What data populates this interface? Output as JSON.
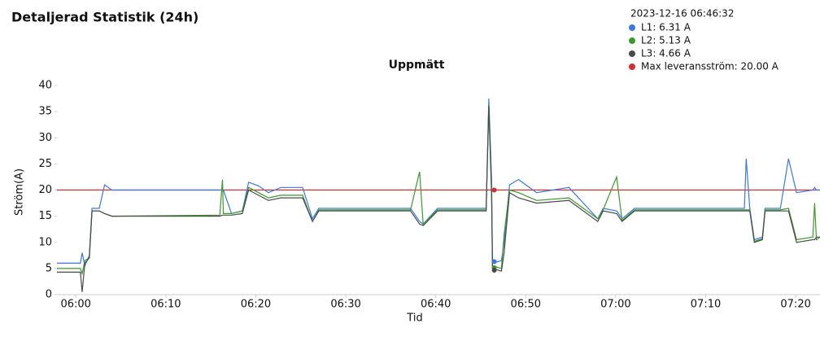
{
  "chart_data": {
    "type": "line",
    "title": "Detaljerad Statistik (24h)",
    "subtitle": "Uppmätt",
    "x_label": "Tid",
    "y_label": "Ström(A)",
    "hover_time": "2023-12-16 06:46:32",
    "x": [
      357.9,
      360.5,
      360.7,
      361.0,
      361.5,
      361.8,
      362.6,
      363.2,
      364.0,
      376.0,
      376.3,
      376.4,
      377.3,
      378.5,
      379.2,
      380.3,
      381.4,
      382.8,
      385.2,
      386.3,
      387.0,
      397.2,
      398.2,
      398.6,
      400.2,
      405.6,
      405.9,
      406.2,
      406.3,
      407.3,
      407.6,
      408.2,
      409.2,
      411.2,
      414.8,
      418.0,
      418.6,
      420.1,
      420.7,
      422.1,
      434.3,
      434.5,
      434.9,
      435.4,
      436.3,
      436.6,
      438.3,
      439.2,
      440.1,
      441.9,
      442.1,
      442.3,
      442.7
    ],
    "series": [
      {
        "name": "L1: 6.31 A",
        "color": "#3b78e7",
        "hover_value": 6.31,
        "values": [
          6.0,
          6.0,
          8.0,
          5.5,
          7.5,
          16.5,
          16.5,
          21.0,
          20.0,
          20.0,
          20.0,
          20.0,
          15.5,
          16.0,
          21.5,
          20.8,
          19.5,
          20.5,
          20.5,
          14.5,
          16.5,
          16.5,
          14.0,
          13.5,
          16.5,
          16.5,
          37.5,
          22.0,
          6.0,
          6.5,
          10.0,
          21.0,
          22.0,
          19.5,
          20.5,
          14.5,
          16.5,
          16.0,
          14.5,
          16.5,
          16.5,
          26.0,
          16.5,
          10.5,
          11.0,
          16.5,
          16.5,
          26.0,
          19.5,
          20.0,
          20.5,
          20.0,
          20.0
        ]
      },
      {
        "name": "L2: 5.13 A",
        "color": "#3a9a2a",
        "hover_value": 5.13,
        "values": [
          5.0,
          5.0,
          4.0,
          6.5,
          7.0,
          16.0,
          16.0,
          15.5,
          15.0,
          15.2,
          22.0,
          15.5,
          15.5,
          16.0,
          20.5,
          19.5,
          18.5,
          19.0,
          19.0,
          14.0,
          16.2,
          16.2,
          23.5,
          13.5,
          16.2,
          16.2,
          36.5,
          20.0,
          5.5,
          5.0,
          11.5,
          20.0,
          19.5,
          18.0,
          18.5,
          14.5,
          16.2,
          22.5,
          14.2,
          16.2,
          16.2,
          16.2,
          16.2,
          10.2,
          10.7,
          16.2,
          16.2,
          16.5,
          10.5,
          11.0,
          17.5,
          10.5,
          11.0
        ]
      },
      {
        "name": "L3: 4.66 A",
        "color": "#4a4a4a",
        "hover_value": 4.66,
        "values": [
          4.3,
          4.3,
          0.5,
          6.0,
          7.0,
          16.0,
          16.0,
          15.5,
          15.0,
          15.0,
          15.2,
          15.2,
          15.2,
          15.5,
          20.0,
          19.0,
          18.0,
          18.5,
          18.5,
          14.0,
          16.0,
          16.0,
          13.5,
          13.2,
          16.0,
          16.0,
          36.0,
          19.0,
          5.0,
          4.5,
          8.0,
          19.5,
          18.5,
          17.5,
          18.0,
          14.0,
          16.0,
          15.5,
          14.0,
          16.0,
          16.0,
          16.0,
          16.0,
          10.0,
          10.5,
          16.0,
          16.0,
          16.0,
          10.0,
          10.5,
          10.5,
          11.0,
          11.0
        ]
      }
    ],
    "reference_line": {
      "name": "Max leveransström: 20.00 A",
      "value": 20,
      "color": "#d32f2f"
    },
    "hover_x": 406.5,
    "xlim": [
      357.9,
      442.7
    ],
    "xticks": [
      {
        "value": 360,
        "label": "06:00"
      },
      {
        "value": 370,
        "label": "06:10"
      },
      {
        "value": 380,
        "label": "06:20"
      },
      {
        "value": 390,
        "label": "06:30"
      },
      {
        "value": 400,
        "label": "06:40"
      },
      {
        "value": 410,
        "label": "06:50"
      },
      {
        "value": 420,
        "label": "07:00"
      },
      {
        "value": 430,
        "label": "07:10"
      },
      {
        "value": 440,
        "label": "07:20"
      }
    ],
    "ylim": [
      0,
      40
    ],
    "yticks": [
      0,
      5,
      10,
      15,
      20,
      25,
      30,
      35,
      40
    ],
    "grid": false
  }
}
